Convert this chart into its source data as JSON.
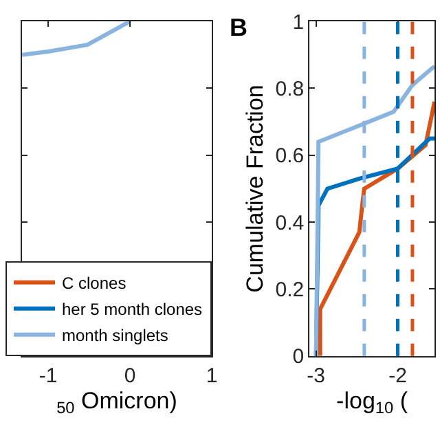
{
  "chart_data": [
    {
      "type": "line",
      "xlabel": "$_{50}$ Omicron)",
      "xlim": [
        -1.32,
        1
      ],
      "ylim": [
        0,
        1
      ],
      "xticks": [
        -1,
        0,
        1
      ],
      "yticks": [
        {
          "value": 0.2,
          "label": null
        },
        {
          "value": 0.4,
          "label": null
        },
        {
          "value": 0.6,
          "label": null
        },
        {
          "value": 0.8,
          "label": null
        }
      ],
      "tick_labels": "x",
      "legend": "bottom right",
      "series": [
        {
          "name": "C clones",
          "color": "#d95319"
        },
        {
          "name": "her 5 month clones",
          "color": "#0072bd"
        },
        {
          "name": "month singlets",
          "color": "#8ab4e0",
          "x": [
            -1.32,
            -1,
            -0.52,
            0
          ],
          "values": [
            0.9,
            0.91,
            0.93,
            1.0
          ]
        }
      ]
    },
    {
      "type": "line",
      "title": "B",
      "xlabel": "-log$_{10}$ (",
      "ylabel": "Cumulative Fraction",
      "xlim": [
        -3.08,
        -1.55
      ],
      "ylim": [
        0,
        1
      ],
      "xticks": [
        -3,
        -2
      ],
      "yticks": [
        0,
        0.2,
        0.4,
        0.6,
        0.8,
        1
      ],
      "series": [
        {
          "color": "#d95319",
          "x": [
            -2.95,
            -2.95,
            -2.47,
            -2.43,
            -2.41,
            -2.0,
            -1.66,
            -1.6,
            -1.55
          ],
          "values": [
            0,
            0.14,
            0.37,
            0.46,
            0.5,
            0.56,
            0.63,
            0.7,
            0.76
          ]
        },
        {
          "color": "#0072bd",
          "x": [
            -3,
            -2.97,
            -2.86,
            -2.47,
            -2.0,
            -1.61,
            -1.55
          ],
          "values": [
            0,
            0.45,
            0.5,
            0.53,
            0.56,
            0.65,
            0.65
          ]
        },
        {
          "color": "#8ab4e0",
          "x": [
            -3,
            -2.97,
            -2.05,
            -1.82,
            -1.58,
            -1.55
          ],
          "values": [
            0,
            0.64,
            0.73,
            0.81,
            0.86,
            0.865
          ]
        }
      ],
      "ref_lines": [
        {
          "axis": "x",
          "value": -2.41,
          "color": "#8ab4e0",
          "line_style": "dashed"
        },
        {
          "axis": "x",
          "value": -2.0,
          "color": "#0072bd",
          "line_style": "dashed"
        },
        {
          "axis": "x",
          "value": -1.82,
          "color": "#d95319",
          "line_style": "dashed"
        }
      ]
    }
  ]
}
